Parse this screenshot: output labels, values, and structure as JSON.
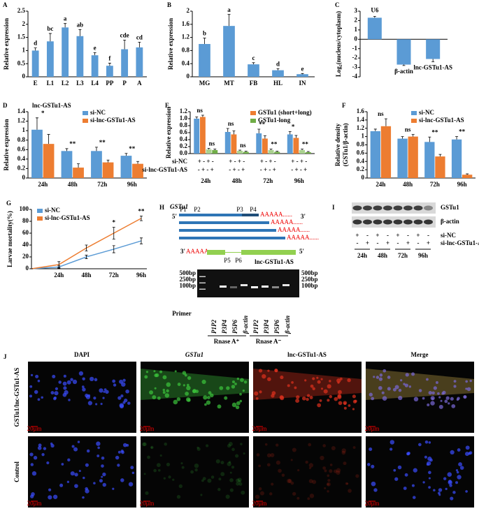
{
  "chart_data": [
    {
      "type": "bar",
      "panel": "A",
      "ylabel": "Relative expression",
      "categories": [
        "E",
        "L1",
        "L2",
        "L3",
        "L4",
        "PP",
        "P",
        "A"
      ],
      "values": [
        1.0,
        1.35,
        1.88,
        1.55,
        0.82,
        0.42,
        1.05,
        1.12
      ],
      "errors": [
        0.1,
        0.3,
        0.15,
        0.25,
        0.1,
        0.1,
        0.35,
        0.2
      ],
      "annotations": [
        "d",
        "bc",
        "a",
        "ab",
        "e",
        "f",
        "cde",
        "cd"
      ],
      "color": "#5b9bd5",
      "ylim": [
        0,
        2.5
      ],
      "yticks": [
        0,
        0.5,
        1,
        1.5,
        2,
        2.5
      ]
    },
    {
      "type": "bar",
      "panel": "B",
      "ylabel": "Relative expression",
      "categories": [
        "MG",
        "MT",
        "FB",
        "HL",
        "IN"
      ],
      "values": [
        1.0,
        1.55,
        0.38,
        0.2,
        0.08
      ],
      "errors": [
        0.18,
        0.35,
        0.05,
        0.05,
        0.02
      ],
      "annotations": [
        "b",
        "a",
        "c",
        "d",
        "e"
      ],
      "color": "#5b9bd5",
      "ylim": [
        0,
        2
      ],
      "yticks": [
        0,
        0.4,
        0.8,
        1.2,
        1.6,
        2
      ]
    },
    {
      "type": "bar",
      "panel": "C",
      "ylabel": "Log₂(nucleus/cytoplasm)",
      "categories": [
        "U6",
        "β-actin",
        "lnc-GSTu1-AS"
      ],
      "values": [
        2.3,
        -2.7,
        -2.1
      ],
      "errors": [
        0.15,
        0.1,
        0.3
      ],
      "color": "#5b9bd5",
      "ylim": [
        -4,
        3
      ],
      "yticks": [
        -4,
        -3,
        -2,
        -1,
        0,
        1,
        2,
        3
      ]
    },
    {
      "type": "bar",
      "panel": "D",
      "title": "lnc-GSTu1-AS",
      "ylabel": "Relative expression",
      "categories": [
        "24h",
        "48h",
        "72h",
        "96h"
      ],
      "series": [
        {
          "name": "si-NC",
          "color": "#5b9bd5",
          "values": [
            1.02,
            0.57,
            0.57,
            0.47
          ],
          "errors": [
            0.25,
            0.05,
            0.08,
            0.05
          ]
        },
        {
          "name": "si-lnc-GSTu1-AS",
          "color": "#ed7d31",
          "values": [
            0.72,
            0.22,
            0.33,
            0.3
          ],
          "errors": [
            0.2,
            0.08,
            0.05,
            0.05
          ]
        }
      ],
      "annotations": [
        "*",
        "**",
        "**",
        "**"
      ],
      "legend_loc": "upper right",
      "ylim": [
        0,
        1.4
      ],
      "yticks": [
        0,
        0.2,
        0.4,
        0.6,
        0.8,
        1,
        1.2,
        1.4
      ]
    },
    {
      "type": "bar",
      "panel": "E",
      "ylabel": "Relative expression",
      "categories": [
        "24h",
        "48h",
        "72h",
        "96h"
      ],
      "series": [
        {
          "color": "#5b9bd5",
          "values": [
            1.0,
            0.62,
            0.58,
            0.55
          ],
          "errors": [
            0.05,
            0.1,
            0.12,
            0.08
          ]
        },
        {
          "color": "#ed7d31",
          "values": [
            1.05,
            0.55,
            0.43,
            0.45
          ],
          "errors": [
            0.05,
            0.1,
            0.08,
            0.07
          ]
        },
        {
          "color": "#a9d18e",
          "values": [
            0.12,
            0.08,
            0.1,
            0.1
          ],
          "errors": [
            0.03,
            0.02,
            0.03,
            0.03
          ]
        },
        {
          "color": "#70ad47",
          "values": [
            0.1,
            0.05,
            0.05,
            0.04
          ],
          "errors": [
            0.03,
            0.02,
            0.02,
            0.02
          ]
        }
      ],
      "legend": [
        {
          "name": "GSTu1 (short+long)",
          "color": "#ed7d31"
        },
        {
          "name": "GSTu1-long",
          "color": "#70ad47"
        }
      ],
      "annotations": [
        "ns",
        "ns",
        "**",
        "*"
      ],
      "annotations_long": [
        "ns",
        "ns",
        "**",
        "**"
      ],
      "rows": [
        {
          "label": "si-NC",
          "signs": [
            "+ - + -",
            "+ - + -",
            "+ - + -",
            "+ - + -"
          ]
        },
        {
          "label": "si-lnc-GSTu1-AS",
          "signs": [
            "- + - +",
            "- + - +",
            "- + - +",
            "- + - +"
          ]
        }
      ],
      "legend_loc": "upper right",
      "ylim": [
        0,
        1.2
      ],
      "yticks": [
        {
          "value": 0,
          "label": "0.0"
        },
        0.2,
        0.4,
        0.6,
        0.8,
        {
          "value": 1,
          "label": "1.0"
        },
        1.2
      ]
    },
    {
      "type": "bar",
      "panel": "F",
      "ylabel": [
        "Relative density",
        "(GSTu1/β-actin)"
      ],
      "categories": [
        "24h",
        "48h",
        "72h",
        "96h"
      ],
      "series": [
        {
          "name": "si-NC",
          "color": "#5b9bd5",
          "values": [
            1.13,
            0.95,
            0.87,
            0.93
          ],
          "errors": [
            0.05,
            0.05,
            0.12,
            0.07
          ]
        },
        {
          "name": "si-lnc-GSTu1-AS",
          "color": "#ed7d31",
          "values": [
            1.25,
            1.0,
            0.52,
            0.08
          ],
          "errors": [
            0.18,
            0.05,
            0.05,
            0.02
          ]
        }
      ],
      "annotations": [
        "ns",
        "ns",
        "**",
        "**"
      ],
      "legend_loc": "upper right",
      "ylim": [
        0,
        1.6
      ],
      "yticks": [
        0,
        0.2,
        0.4,
        0.6,
        0.8,
        1,
        1.2,
        1.4,
        1.6
      ]
    },
    {
      "type": "line",
      "panel": "G",
      "ylabel": "Larvae mortality(%)",
      "categories": [
        null,
        "24h",
        "48h",
        "72h",
        "96h"
      ],
      "series": [
        {
          "name": "si-NC",
          "color": "#5b9bd5",
          "values": [
            0,
            3,
            20,
            33,
            47
          ],
          "errors": [
            0,
            2,
            3,
            6,
            5
          ]
        },
        {
          "name": "si-lnc-GSTu1-AS",
          "color": "#ed7d31",
          "values": [
            0,
            7,
            35,
            60,
            85
          ],
          "errors": [
            0,
            5,
            5,
            10,
            4
          ]
        }
      ],
      "annotations": [
        null,
        null,
        null,
        "*",
        "**"
      ],
      "legend_loc": "upper left",
      "ylim": [
        0,
        100
      ],
      "yticks": [
        0,
        20,
        40,
        60,
        80,
        100
      ]
    }
  ],
  "gel_diagram": {
    "panel": "H",
    "gene": "GSTu1",
    "five_prime": "5'",
    "three_prime": "3'",
    "primers": [
      "P1",
      "P2",
      "P3",
      "P4",
      "P5",
      "P6"
    ],
    "poly_a": "AAAAA......",
    "antisense": "lnc-GSTu1-AS",
    "ladder": [
      "500bp",
      "250bp",
      "100bp"
    ],
    "primer_label": "Primer",
    "lanes": [
      "P1P2",
      "P3P4",
      "P5P6",
      "β-actin",
      "P1P2",
      "P3P4",
      "P5P6",
      "β-actin"
    ],
    "treatments": [
      "Rnase A⁺",
      "Rnase A⁻"
    ]
  },
  "western_blot": {
    "panel": "I",
    "bands": [
      "GSTu1",
      "β-actin"
    ],
    "rows": [
      {
        "label": "si-NC",
        "signs": [
          "+",
          "-",
          "+",
          "-",
          "+",
          "-",
          "+",
          "-"
        ]
      },
      {
        "label": "si-lnc-GSTu1-AS",
        "signs": [
          "-",
          "+",
          "-",
          "+",
          "-",
          "+",
          "-",
          "+"
        ]
      }
    ],
    "times": [
      "24h",
      "48h",
      "72h",
      "96h"
    ]
  },
  "imaging": {
    "panel": "J",
    "columns": [
      "DAPI",
      "GSTu1",
      "lnc-GSTu1-AS",
      "Merge"
    ],
    "rows": [
      "GSTu1/lnc-GSTu1-AS",
      "Control"
    ],
    "scale_bar": "20μm"
  }
}
